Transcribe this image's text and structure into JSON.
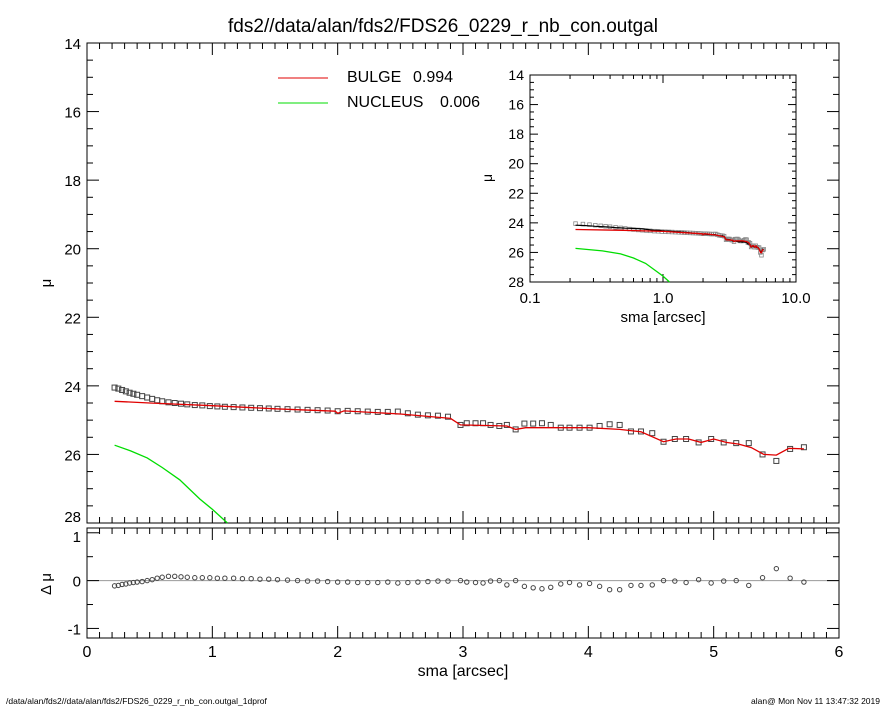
{
  "title": "fds2//data/alan/fds2/FDS26_0229_r_nb_con.outgal",
  "footer": {
    "left": "/data/alan/fds2//data/alan/fds2/FDS26_0229_r_nb_con.outgal_1dprof",
    "right": "alan@  Mon Nov 11 13:47:32 2019"
  },
  "colors": {
    "bulge": "#e00000",
    "nucleus": "#00dd00",
    "data": "#444444",
    "axis": "#000000",
    "zero_line": "#999999"
  },
  "chart_data": [
    {
      "type": "scatter",
      "panel": "main",
      "xlabel": "",
      "ylabel": "μ",
      "xlim": [
        0,
        6
      ],
      "ylim": [
        28,
        14
      ],
      "y_inverted": true,
      "yticks": [
        "14",
        "16",
        "18",
        "20",
        "22",
        "24",
        "26",
        "28"
      ],
      "legend_placement": "top-left",
      "legend": [
        {
          "name": "BULGE",
          "value": "0.994",
          "color": "#e00000"
        },
        {
          "name": "NUCLEUS",
          "value": "0.006",
          "color": "#00dd00"
        }
      ],
      "data_points": {
        "x": [
          0.22,
          0.25,
          0.28,
          0.31,
          0.34,
          0.37,
          0.4,
          0.44,
          0.48,
          0.52,
          0.56,
          0.6,
          0.65,
          0.7,
          0.75,
          0.8,
          0.86,
          0.92,
          0.98,
          1.04,
          1.1,
          1.17,
          1.24,
          1.31,
          1.38,
          1.45,
          1.52,
          1.6,
          1.68,
          1.76,
          1.84,
          1.92,
          2.0,
          2.08,
          2.16,
          2.24,
          2.32,
          2.4,
          2.48,
          2.56,
          2.64,
          2.72,
          2.8,
          2.88,
          2.98,
          3.03,
          3.1,
          3.16,
          3.22,
          3.29,
          3.35,
          3.42,
          3.49,
          3.56,
          3.63,
          3.7,
          3.78,
          3.85,
          3.93,
          4.01,
          4.09,
          4.17,
          4.25,
          4.34,
          4.42,
          4.51,
          4.6,
          4.69,
          4.78,
          4.88,
          4.98,
          5.08,
          5.18,
          5.28,
          5.39,
          5.5,
          5.61,
          5.72
        ],
        "mu": [
          24.05,
          24.08,
          24.12,
          24.16,
          24.2,
          24.23,
          24.26,
          24.3,
          24.34,
          24.38,
          24.42,
          24.45,
          24.48,
          24.5,
          24.52,
          24.54,
          24.56,
          24.57,
          24.59,
          24.6,
          24.61,
          24.62,
          24.63,
          24.64,
          24.65,
          24.66,
          24.67,
          24.68,
          24.69,
          24.7,
          24.71,
          24.72,
          24.74,
          24.73,
          24.74,
          24.75,
          24.76,
          24.76,
          24.75,
          24.8,
          24.84,
          24.86,
          24.87,
          24.9,
          25.14,
          25.09,
          25.09,
          25.09,
          25.14,
          25.17,
          25.14,
          25.27,
          25.1,
          25.1,
          25.09,
          25.14,
          25.22,
          25.22,
          25.22,
          25.22,
          25.17,
          25.12,
          25.14,
          25.33,
          25.33,
          25.38,
          25.63,
          25.55,
          25.55,
          25.65,
          25.55,
          25.65,
          25.67,
          25.67,
          26.0,
          26.19,
          25.84,
          25.79
        ]
      },
      "series": [
        {
          "name": "BULGE",
          "color": "#e00000",
          "x": [
            0.22,
            0.5,
            1.0,
            1.5,
            1.98,
            2.0,
            2.05,
            2.5,
            2.9,
            2.98,
            3.35,
            3.42,
            3.5,
            4.0,
            4.25,
            4.42,
            4.6,
            4.7,
            4.8,
            4.9,
            5.0,
            5.1,
            5.2,
            5.3,
            5.4,
            5.5,
            5.6,
            5.72
          ],
          "y": [
            24.45,
            24.5,
            24.58,
            24.67,
            24.74,
            24.8,
            24.73,
            24.82,
            24.95,
            25.14,
            25.17,
            25.27,
            25.22,
            25.22,
            25.27,
            25.34,
            25.63,
            25.55,
            25.55,
            25.65,
            25.55,
            25.65,
            25.7,
            25.8,
            26.0,
            26.02,
            25.82,
            25.84
          ]
        },
        {
          "name": "NUCLEUS",
          "color": "#00dd00",
          "x": [
            0.22,
            0.35,
            0.48,
            0.6,
            0.74,
            0.9,
            1.0,
            1.12
          ],
          "y": [
            25.73,
            25.9,
            26.1,
            26.38,
            26.74,
            27.3,
            27.6,
            28.0
          ]
        }
      ]
    },
    {
      "type": "scatter",
      "panel": "residual",
      "xlabel": "sma [arcsec]",
      "ylabel": "Δ μ",
      "xlim": [
        0,
        6
      ],
      "ylim": [
        -1.2,
        1.1
      ],
      "xticks": [
        "0",
        "1",
        "2",
        "3",
        "4",
        "5",
        "6"
      ],
      "yticks": [
        "1",
        "0",
        "-1"
      ],
      "residuals": [
        -0.11,
        -0.1,
        -0.08,
        -0.07,
        -0.05,
        -0.04,
        -0.03,
        -0.02,
        0.0,
        0.02,
        0.05,
        0.07,
        0.09,
        0.09,
        0.08,
        0.07,
        0.06,
        0.06,
        0.06,
        0.05,
        0.05,
        0.05,
        0.04,
        0.04,
        0.03,
        0.03,
        0.02,
        0.01,
        0.0,
        -0.01,
        -0.01,
        -0.02,
        -0.03,
        -0.03,
        -0.04,
        -0.04,
        -0.04,
        -0.03,
        -0.05,
        -0.04,
        -0.03,
        -0.02,
        -0.01,
        -0.01,
        0.0,
        -0.03,
        -0.04,
        -0.05,
        -0.01,
        0.0,
        -0.09,
        0.0,
        -0.12,
        -0.15,
        -0.17,
        -0.14,
        -0.07,
        -0.04,
        -0.09,
        -0.06,
        -0.12,
        -0.19,
        -0.19,
        -0.1,
        -0.1,
        -0.09,
        0.0,
        -0.01,
        -0.04,
        0.02,
        -0.05,
        -0.01,
        0.0,
        -0.1,
        0.06,
        0.25,
        0.05,
        -0.03
      ]
    },
    {
      "type": "scatter",
      "panel": "inset",
      "xlabel": "sma [arcsec]",
      "ylabel": "μ",
      "xscale": "log",
      "xlim": [
        0.1,
        10.0
      ],
      "ylim": [
        28,
        14
      ],
      "xticks": [
        "0.1",
        "1.0",
        "10.0"
      ],
      "yticks": [
        "14",
        "16",
        "18",
        "20",
        "22",
        "24",
        "26",
        "28"
      ]
    }
  ]
}
